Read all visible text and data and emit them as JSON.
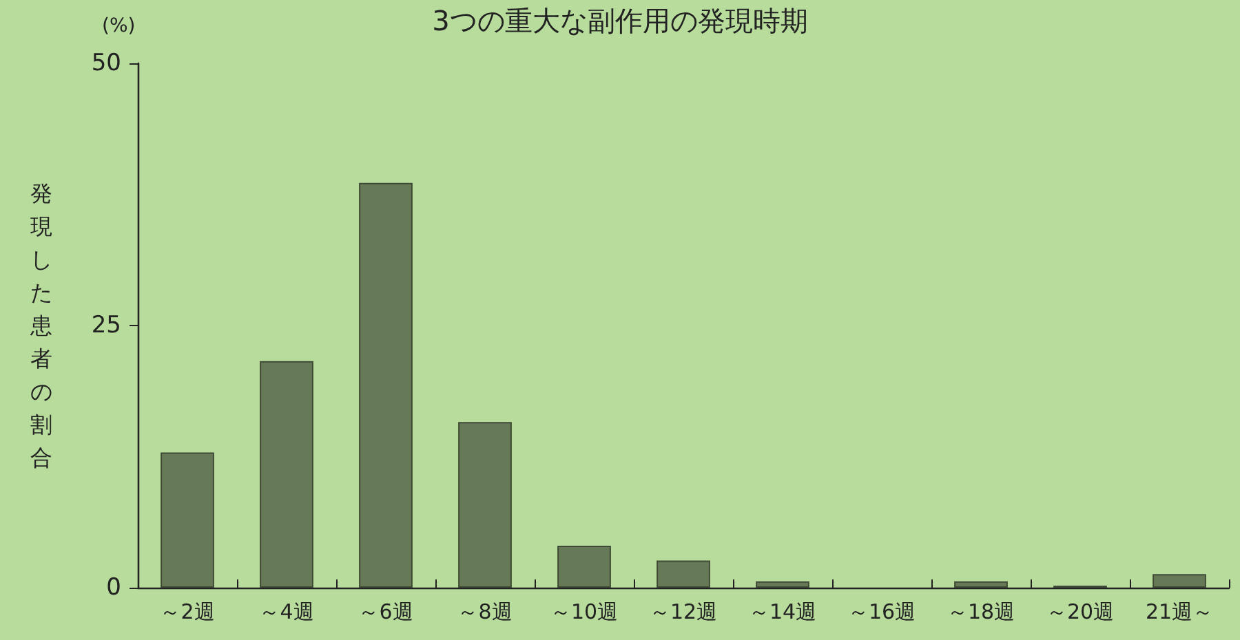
{
  "chart_data": {
    "type": "bar",
    "title": "3つの重大な副作用の発現時期",
    "ylabel": "発現した患者の割合",
    "annotations": [
      "(%)"
    ],
    "categories": [
      "～2週",
      "～4週",
      "～6週",
      "～8週",
      "～10週",
      "～12週",
      "～14週",
      "～16週",
      "～18週",
      "～20週",
      "21週～"
    ],
    "values": [
      12.9,
      21.6,
      38.6,
      15.8,
      4.0,
      2.6,
      0.6,
      0,
      0.6,
      0.2,
      1.3
    ],
    "color": "#667a58",
    "ylim": [
      0,
      50
    ],
    "yticks": [
      0,
      25,
      50
    ],
    "grid": false
  }
}
